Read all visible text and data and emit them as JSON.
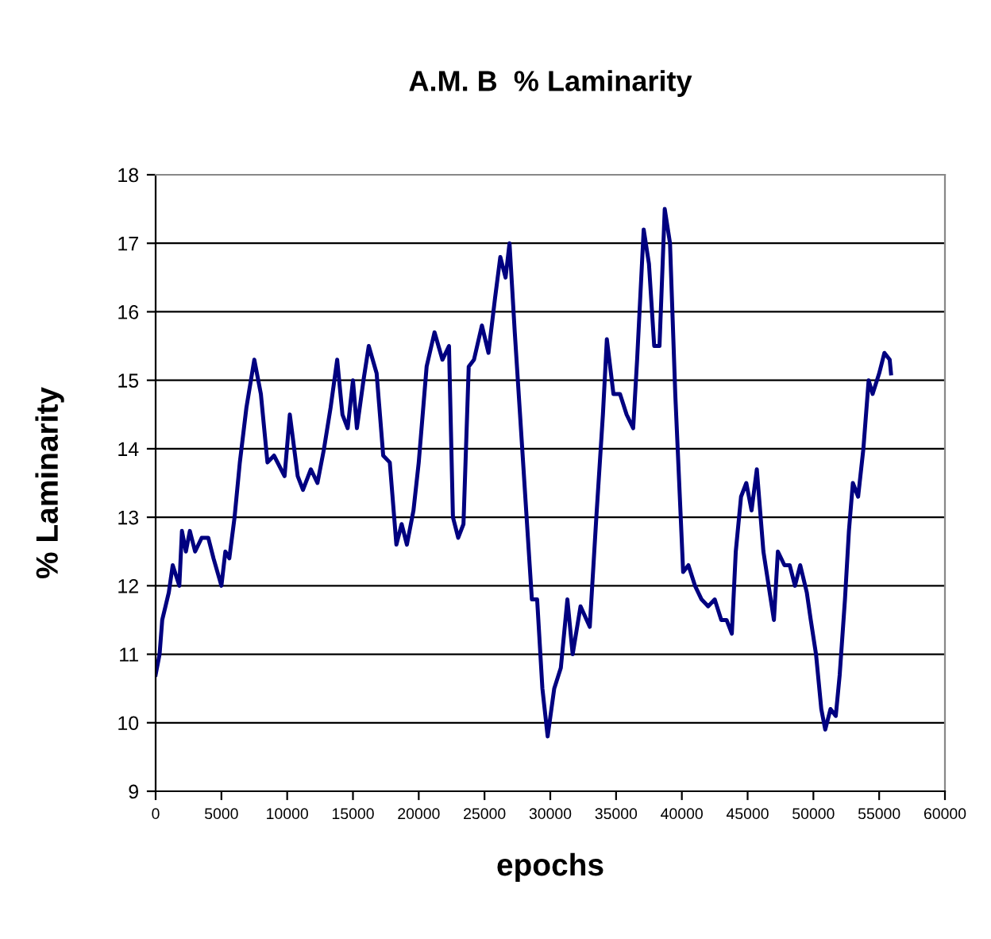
{
  "chart_data": {
    "type": "line",
    "title": "A.M. B  % Laminarity",
    "xlabel": "epochs",
    "ylabel": "% Laminarity",
    "xlim": [
      0,
      60000
    ],
    "xticks": [
      0,
      5000,
      10000,
      15000,
      20000,
      25000,
      30000,
      35000,
      40000,
      45000,
      50000,
      55000,
      60000
    ],
    "ylim": [
      9,
      18
    ],
    "yticks": [
      9,
      10,
      11,
      12,
      13,
      14,
      15,
      16,
      17,
      18
    ],
    "grid": "y",
    "legend": false,
    "marker": "none",
    "line_style": "solid",
    "series": [
      {
        "color": "#000080",
        "x": [
          0,
          300,
          500,
          1000,
          1300,
          1800,
          2000,
          2300,
          2600,
          3000,
          3500,
          4000,
          4400,
          4700,
          5000,
          5300,
          5600,
          6000,
          6400,
          6900,
          7500,
          8000,
          8500,
          9000,
          9800,
          10200,
          10800,
          11200,
          11800,
          12300,
          12800,
          13300,
          13800,
          14200,
          14600,
          15000,
          15300,
          15800,
          16200,
          16800,
          17300,
          17800,
          18300,
          18700,
          19100,
          19600,
          20000,
          20600,
          21200,
          21800,
          22300,
          22600,
          23000,
          23400,
          23800,
          24200,
          24800,
          25300,
          25800,
          26200,
          26600,
          26900,
          27300,
          27700,
          28200,
          28600,
          29000,
          29400,
          29800,
          30300,
          30800,
          31300,
          31700,
          32300,
          33000,
          33500,
          34000,
          34300,
          34800,
          35300,
          35800,
          36300,
          36600,
          37100,
          37500,
          37900,
          38300,
          38700,
          39100,
          39500,
          40100,
          40500,
          41000,
          41500,
          42000,
          42500,
          43000,
          43400,
          43800,
          44100,
          44500,
          44900,
          45300,
          45700,
          46200,
          46600,
          47000,
          47300,
          47800,
          48200,
          48600,
          49000,
          49500,
          49800,
          50200,
          50600,
          50900,
          51300,
          51700,
          52000,
          52400,
          52700,
          53000,
          53400,
          53800,
          54200,
          54500,
          55000,
          55400,
          55800,
          55900
        ],
        "values": [
          10.7,
          11.0,
          11.5,
          11.9,
          12.3,
          12.0,
          12.8,
          12.5,
          12.8,
          12.5,
          12.7,
          12.7,
          12.4,
          12.2,
          12.0,
          12.5,
          12.4,
          13.0,
          13.8,
          14.6,
          15.3,
          14.8,
          13.8,
          13.9,
          13.6,
          14.5,
          13.6,
          13.4,
          13.7,
          13.5,
          14.0,
          14.6,
          15.3,
          14.5,
          14.3,
          15.0,
          14.3,
          15.0,
          15.5,
          15.1,
          13.9,
          13.8,
          12.6,
          12.9,
          12.6,
          13.1,
          13.8,
          15.2,
          15.7,
          15.3,
          15.5,
          13.0,
          12.7,
          12.9,
          15.2,
          15.3,
          15.8,
          15.4,
          16.2,
          16.8,
          16.5,
          17.0,
          15.7,
          14.5,
          13.0,
          11.8,
          11.8,
          10.5,
          9.8,
          10.5,
          10.8,
          11.8,
          11.0,
          11.7,
          11.4,
          13.0,
          14.5,
          15.6,
          14.8,
          14.8,
          14.5,
          14.3,
          15.3,
          17.2,
          16.7,
          15.5,
          15.5,
          17.5,
          17.0,
          14.8,
          12.2,
          12.3,
          12.0,
          11.8,
          11.7,
          11.8,
          11.5,
          11.5,
          11.3,
          12.5,
          13.3,
          13.5,
          13.1,
          13.7,
          12.5,
          12.0,
          11.5,
          12.5,
          12.3,
          12.3,
          12.0,
          12.3,
          11.9,
          11.5,
          11.0,
          10.2,
          9.9,
          10.2,
          10.1,
          10.7,
          11.8,
          12.8,
          13.5,
          13.3,
          14.0,
          15.0,
          14.8,
          15.1,
          15.4,
          15.3,
          15.1
        ]
      }
    ]
  }
}
